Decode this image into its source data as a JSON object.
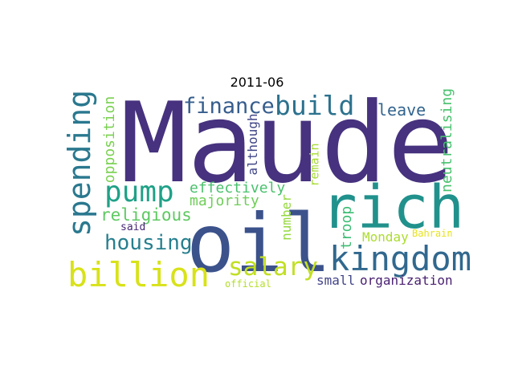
{
  "title": "2011-06",
  "words": [
    {
      "text": "Maude",
      "color": "#46327e"
    },
    {
      "text": "oil",
      "color": "#3b528b"
    },
    {
      "text": "rich",
      "color": "#21918c"
    },
    {
      "text": "kingdom",
      "color": "#31688e"
    },
    {
      "text": "billion",
      "color": "#d8e219"
    },
    {
      "text": "spending",
      "color": "#2a788e"
    },
    {
      "text": "pump",
      "color": "#1fa187"
    },
    {
      "text": "finance",
      "color": "#365d8d"
    },
    {
      "text": "build",
      "color": "#2c728e"
    },
    {
      "text": "salary",
      "color": "#c2df23"
    },
    {
      "text": "housing",
      "color": "#277f8e"
    },
    {
      "text": "religious",
      "color": "#5ec962"
    },
    {
      "text": "opposition",
      "color": "#7ad151"
    },
    {
      "text": "effectively",
      "color": "#4ac16d"
    },
    {
      "text": "majority",
      "color": "#6ece58"
    },
    {
      "text": "although",
      "color": "#404688"
    },
    {
      "text": "number",
      "color": "#95d840"
    },
    {
      "text": "remain",
      "color": "#a8db34"
    },
    {
      "text": "troop",
      "color": "#3dbc74"
    },
    {
      "text": "leave",
      "color": "#32648e"
    },
    {
      "text": "neutralising",
      "color": "#48c16e"
    },
    {
      "text": "Monday",
      "color": "#addc30"
    },
    {
      "text": "Bahrain",
      "color": "#e7e419"
    },
    {
      "text": "small",
      "color": "#414487"
    },
    {
      "text": "organization",
      "color": "#481f70"
    },
    {
      "text": "said",
      "color": "#482576"
    },
    {
      "text": "official",
      "color": "#b5de2b"
    }
  ]
}
